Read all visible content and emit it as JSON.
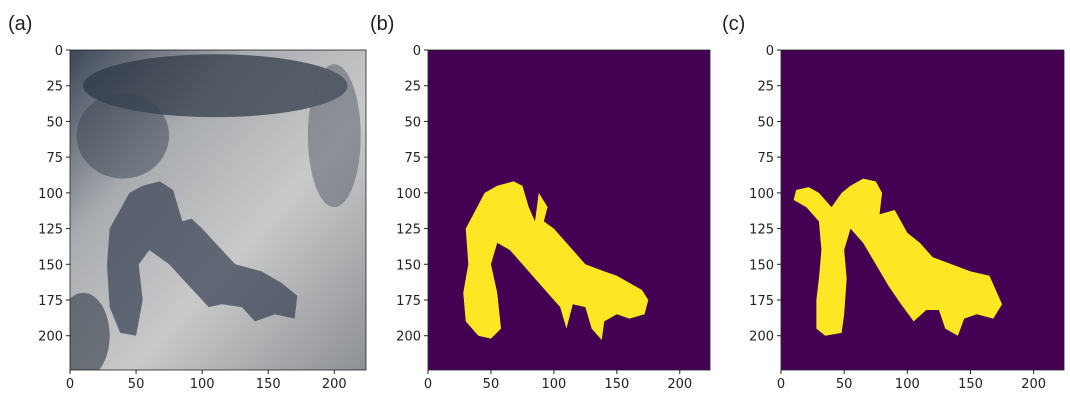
{
  "panels": [
    {
      "label": "(a)",
      "xticks": [
        0,
        50,
        100,
        150,
        200
      ],
      "yticks": [
        0,
        25,
        50,
        75,
        100,
        125,
        150,
        175,
        200
      ]
    },
    {
      "label": "(b)",
      "xticks": [
        0,
        50,
        100,
        150,
        200
      ],
      "yticks": [
        0,
        25,
        50,
        75,
        100,
        125,
        150,
        175,
        200
      ]
    },
    {
      "label": "(c)",
      "xticks": [
        0,
        50,
        100,
        150,
        200
      ],
      "yticks": [
        0,
        25,
        50,
        75,
        100,
        125,
        150,
        175,
        200
      ]
    }
  ]
}
